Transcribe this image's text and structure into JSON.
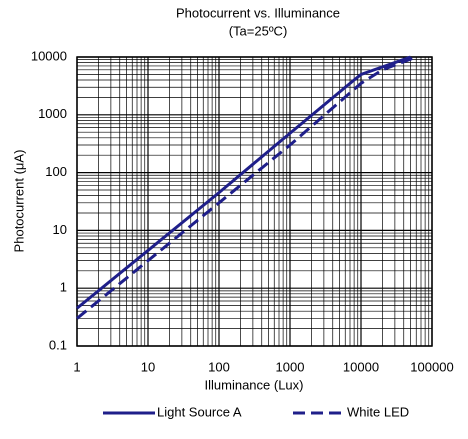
{
  "chart_data": {
    "type": "line",
    "title": "Photocurrent vs. Illuminance",
    "subtitle": "(Ta=25ºC)",
    "x_label": "Illuminance (Lux)",
    "y_label": "Photocurrent (μA)",
    "xscale": "log",
    "yscale": "log",
    "grid": true,
    "minor_grid": true,
    "legend": "bottom",
    "xlim": [
      1,
      100000
    ],
    "xticks": [
      1,
      10,
      100,
      1000,
      10000,
      100000
    ],
    "ylim": [
      0.1,
      10000
    ],
    "yticks": [
      0.1,
      1,
      10,
      100,
      1000,
      10000
    ],
    "series": [
      {
        "name": "Light Source A",
        "color": "#1f1f8a",
        "dash": false,
        "x": [
          1,
          10,
          100,
          1000,
          7000,
          10000,
          30000,
          50000
        ],
        "values": [
          0.45,
          4.5,
          45,
          480,
          3500,
          5000,
          8000,
          10000
        ]
      },
      {
        "name": "White LED",
        "color": "#1f1f8a",
        "dash": true,
        "x": [
          1,
          10,
          100,
          1000,
          10000,
          20000,
          60000
        ],
        "values": [
          0.3,
          3,
          30,
          300,
          3500,
          6000,
          10000
        ]
      }
    ]
  }
}
